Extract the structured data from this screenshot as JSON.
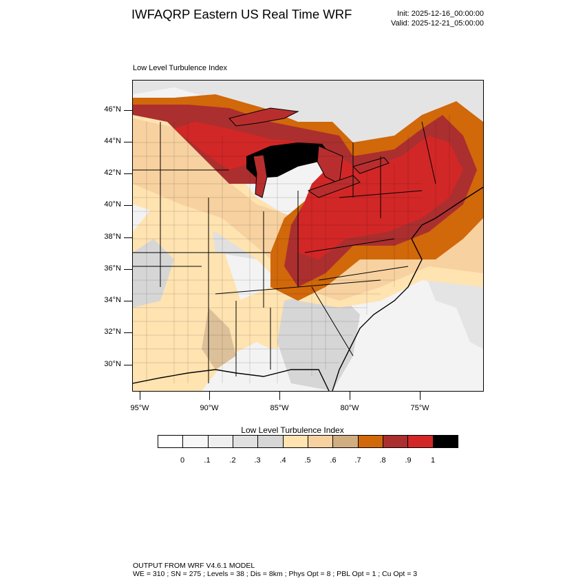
{
  "header": {
    "title": "IWFAQRP Eastern US Real Time WRF",
    "init": "Init: 2025-12-16_00:00:00",
    "valid": "Valid: 2025-12-21_05:00:00"
  },
  "map": {
    "title": "Low Level Turbulence Index",
    "lat_labels": [
      "46°N",
      "44°N",
      "42°N",
      "40°N",
      "38°N",
      "36°N",
      "34°N",
      "32°N",
      "30°N"
    ],
    "lon_labels": [
      "95°W",
      "90°W",
      "85°W",
      "80°W",
      "75°W"
    ]
  },
  "colorbar": {
    "title": "Low Level Turbulence Index",
    "labels": [
      "0",
      ".1",
      ".2",
      ".3",
      ".4",
      ".5",
      ".6",
      ".7",
      ".8",
      ".9",
      "1"
    ],
    "colors": [
      "#ffffff",
      "#f7f7f7",
      "#efefef",
      "#e0e0e0",
      "#d6d6d6",
      "#ffe3b1",
      "#f7d1a0",
      "#d1ad82",
      "#d1680a",
      "#ab2f2f",
      "#d22727",
      "#000000"
    ]
  },
  "footer": {
    "line1": "OUTPUT FROM WRF V4.6.1 MODEL",
    "line2": "WE = 310 ; SN = 275 ; Levels = 38 ; Dis = 8km ; Phys Opt = 8 ; PBL Opt = 1 ; Cu Opt = 3"
  }
}
